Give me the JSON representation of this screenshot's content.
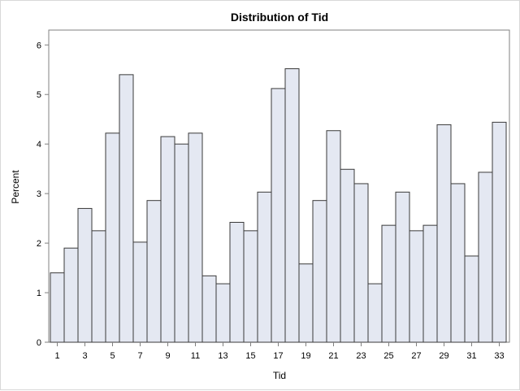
{
  "chart_data": {
    "type": "bar",
    "title": "Distribution of Tid",
    "xlabel": "Tid",
    "ylabel": "Percent",
    "categories": [
      1,
      2,
      3,
      4,
      5,
      6,
      7,
      8,
      9,
      10,
      11,
      12,
      13,
      14,
      15,
      16,
      17,
      18,
      19,
      20,
      21,
      22,
      23,
      24,
      25,
      26,
      27,
      28,
      29,
      30,
      31,
      32,
      33
    ],
    "values": [
      1.4,
      1.9,
      2.7,
      2.25,
      4.22,
      5.4,
      2.02,
      2.86,
      4.15,
      4.0,
      4.22,
      1.34,
      1.18,
      2.42,
      2.25,
      3.03,
      5.12,
      5.52,
      1.58,
      2.86,
      4.27,
      3.49,
      3.2,
      1.18,
      2.36,
      3.03,
      2.25,
      2.36,
      4.39,
      3.2,
      1.74,
      3.43,
      4.44
    ],
    "x_tick_labels": [
      "1",
      "3",
      "5",
      "7",
      "9",
      "11",
      "13",
      "15",
      "17",
      "19",
      "21",
      "23",
      "25",
      "27",
      "29",
      "31",
      "33"
    ],
    "y_tick_labels": [
      "0",
      "1",
      "2",
      "3",
      "4",
      "5",
      "6"
    ],
    "ylim": [
      0,
      6.3
    ],
    "grid": false,
    "colors": {
      "bar_fill": "#e4e8f2",
      "bar_stroke": "#3a3a3a",
      "axis": "#808080"
    }
  }
}
